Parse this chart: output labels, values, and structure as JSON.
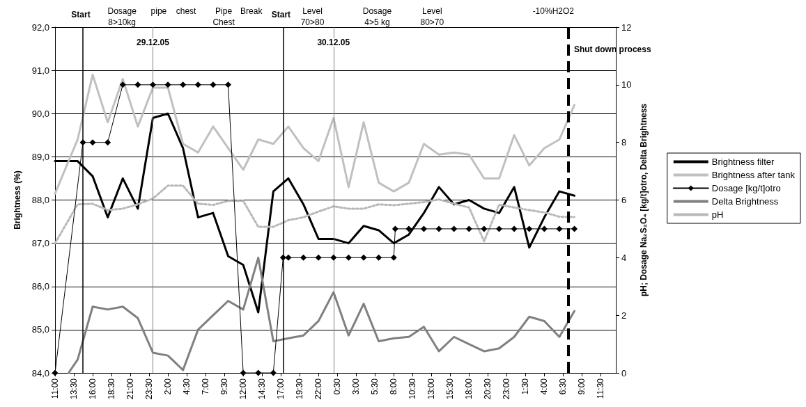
{
  "chart_data": {
    "type": "line",
    "ylabel": "Brightness (%)",
    "y2label": "pH; Dosage Na₂S₂O₄ [kg/t]otro, Delta Brightness",
    "xlim": [
      "--12-28T11:00",
      "--12-31T13:30"
    ],
    "xticks": [
      {
        "value": "--12-28T11:00",
        "label": "11:00"
      },
      {
        "value": "--12-28T13:30",
        "label": "13:30"
      },
      {
        "value": "--12-28T16:00",
        "label": "16:00"
      },
      {
        "value": "--12-28T18:30",
        "label": "18:30"
      },
      {
        "value": "--12-28T21:00",
        "label": "21:00"
      },
      {
        "value": "--12-28T23:30",
        "label": "23:30"
      },
      {
        "value": "--12-29T02:00",
        "label": "2:00"
      },
      {
        "value": "--12-29T04:30",
        "label": "4:30"
      },
      {
        "value": "--12-29T07:00",
        "label": "7:00"
      },
      {
        "value": "--12-29T09:30",
        "label": "9:30"
      },
      {
        "value": "--12-29T12:00",
        "label": "12:00"
      },
      {
        "value": "--12-29T14:30",
        "label": "14:30"
      },
      {
        "value": "--12-29T17:00",
        "label": "17:00"
      },
      {
        "value": "--12-29T19:30",
        "label": "19:30"
      },
      {
        "value": "--12-29T22:00",
        "label": "22:00"
      },
      {
        "value": "--12-30T00:30",
        "label": "0:30"
      },
      {
        "value": "--12-30T03:00",
        "label": "3:00"
      },
      {
        "value": "--12-30T05:30",
        "label": "5:30"
      },
      {
        "value": "--12-30T08:00",
        "label": "8:00"
      },
      {
        "value": "--12-30T10:30",
        "label": "10:30"
      },
      {
        "value": "--12-30T13:00",
        "label": "13:00"
      },
      {
        "value": "--12-30T15:30",
        "label": "15:30"
      },
      {
        "value": "--12-30T18:00",
        "label": "18:00"
      },
      {
        "value": "--12-30T20:30",
        "label": "20:30"
      },
      {
        "value": "--12-30T23:00",
        "label": "23:00"
      },
      {
        "value": "--12-31T01:30",
        "label": "1:30"
      },
      {
        "value": "--12-31T04:00",
        "label": "4:00"
      },
      {
        "value": "--12-31T06:30",
        "label": "6:30"
      },
      {
        "value": "--12-31T09:00",
        "label": "9:00"
      },
      {
        "value": "--12-31T11:30",
        "label": "11:30"
      }
    ],
    "ylim": [
      84,
      92
    ],
    "yticks": [
      {
        "value": 84,
        "label": "84,0"
      },
      {
        "value": 85,
        "label": "85,0"
      },
      {
        "value": 86,
        "label": "86,0"
      },
      {
        "value": 87,
        "label": "87,0"
      },
      {
        "value": 88,
        "label": "88,0"
      },
      {
        "value": 89,
        "label": "89,0"
      },
      {
        "value": 90,
        "label": "90,0"
      },
      {
        "value": 91,
        "label": "91,0"
      },
      {
        "value": 92,
        "label": "92,0"
      }
    ],
    "y2lim": [
      0,
      12
    ],
    "y2ticks": [
      0,
      2,
      4,
      6,
      8,
      10,
      12
    ],
    "grid": "y",
    "legend": "right",
    "series": [
      {
        "name": "Brightness filter",
        "color": "#000000",
        "marker": "none",
        "x": [
          "--12-28T11:00",
          "--12-28T14:00",
          "--12-28T16:00",
          "--12-28T18:00",
          "--12-28T20:00",
          "--12-28T22:00",
          "--12-29T00:00",
          "--12-29T02:00",
          "--12-29T04:00",
          "--12-29T06:00",
          "--12-29T08:00",
          "--12-29T10:00",
          "--12-29T12:00",
          "--12-29T14:00",
          "--12-29T16:00",
          "--12-29T18:00",
          "--12-29T20:00",
          "--12-29T22:00",
          "--12-30T00:00",
          "--12-30T02:00",
          "--12-30T04:00",
          "--12-30T06:00",
          "--12-30T08:00",
          "--12-30T10:00",
          "--12-30T12:00",
          "--12-30T14:00",
          "--12-30T16:00",
          "--12-30T18:00",
          "--12-30T20:00",
          "--12-30T22:00",
          "--12-31T00:00",
          "--12-31T02:00",
          "--12-31T04:00",
          "--12-31T06:00",
          "--12-31T08:00"
        ],
        "values": [
          88.9,
          88.9,
          88.55,
          87.6,
          88.5,
          87.8,
          89.9,
          90.0,
          89.2,
          87.6,
          87.7,
          86.7,
          86.5,
          85.4,
          88.2,
          88.5,
          87.9,
          87.1,
          87.1,
          87.0,
          87.4,
          87.3,
          87.0,
          87.2,
          87.7,
          88.3,
          87.9,
          88.0,
          87.8,
          87.7,
          88.3,
          86.9,
          87.6,
          88.2,
          88.1
        ]
      },
      {
        "name": "Brightness after tank",
        "color": "#c0c0c0",
        "marker": "none",
        "x": [
          "--12-28T11:00",
          "--12-28T14:00",
          "--12-28T16:00",
          "--12-28T18:00",
          "--12-28T20:00",
          "--12-28T22:00",
          "--12-29T00:00",
          "--12-29T02:00",
          "--12-29T04:00",
          "--12-29T06:00",
          "--12-29T08:00",
          "--12-29T10:00",
          "--12-29T12:00",
          "--12-29T14:00",
          "--12-29T16:00",
          "--12-29T18:00",
          "--12-29T20:00",
          "--12-29T22:00",
          "--12-30T00:00",
          "--12-30T02:00",
          "--12-30T04:00",
          "--12-30T06:00",
          "--12-30T08:00",
          "--12-30T10:00",
          "--12-30T12:00",
          "--12-30T14:00",
          "--12-30T16:00",
          "--12-30T18:00",
          "--12-30T20:00",
          "--12-30T22:00",
          "--12-31T00:00",
          "--12-31T02:00",
          "--12-31T04:00",
          "--12-31T06:00",
          "--12-31T08:00"
        ],
        "values": [
          88.15,
          89.4,
          90.9,
          89.8,
          90.8,
          89.7,
          90.6,
          90.6,
          89.3,
          89.1,
          89.7,
          89.2,
          88.7,
          89.4,
          89.3,
          89.7,
          89.2,
          88.9,
          89.9,
          88.3,
          89.8,
          88.4,
          88.2,
          88.4,
          89.3,
          89.05,
          89.1,
          89.05,
          88.5,
          88.5,
          89.5,
          88.8,
          89.2,
          89.4,
          90.2
        ]
      },
      {
        "name": "Dosage [kg/t]otro",
        "color": "#000000",
        "marker": "diamond",
        "axis": "y2",
        "x": [
          "--12-28T11:00",
          "--12-28T14:42",
          "--12-28T16:00",
          "--12-28T18:00",
          "--12-28T20:00",
          "--12-28T22:00",
          "--12-29T00:00",
          "--12-29T02:00",
          "--12-29T04:00",
          "--12-29T06:00",
          "--12-29T08:00",
          "--12-29T10:00",
          "--12-29T12:00",
          "--12-29T14:00",
          "--12-29T16:00",
          "--12-29T17:18",
          "--12-29T18:00",
          "--12-29T20:00",
          "--12-29T22:00",
          "--12-30T00:00",
          "--12-30T02:00",
          "--12-30T04:00",
          "--12-30T06:00",
          "--12-30T08:00",
          "--12-30T08:12",
          "--12-30T10:00",
          "--12-30T12:00",
          "--12-30T14:00",
          "--12-30T16:00",
          "--12-30T18:00",
          "--12-30T20:00",
          "--12-30T22:00",
          "--12-31T00:00",
          "--12-31T02:00",
          "--12-31T04:00",
          "--12-31T06:00",
          "--12-31T08:00"
        ],
        "values": [
          0,
          8,
          8,
          8,
          10,
          10,
          10,
          10,
          10,
          10,
          10,
          10,
          0,
          0,
          0,
          4,
          4,
          4,
          4,
          4,
          4,
          4,
          4,
          4,
          5,
          5,
          5,
          5,
          5,
          5,
          5,
          5,
          5,
          5,
          5,
          5,
          5
        ]
      },
      {
        "name": "Delta Brightness",
        "color": "#808080",
        "marker": "none",
        "axis": "y2",
        "x": [
          "--12-28T12:48",
          "--12-28T14:00",
          "--12-28T16:00",
          "--12-28T18:00",
          "--12-28T20:00",
          "--12-28T22:00",
          "--12-29T00:00",
          "--12-29T02:00",
          "--12-29T04:00",
          "--12-29T06:00",
          "--12-29T08:00",
          "--12-29T10:00",
          "--12-29T12:00",
          "--12-29T14:00",
          "--12-29T16:00",
          "--12-29T18:00",
          "--12-29T20:00",
          "--12-29T22:00",
          "--12-30T00:00",
          "--12-30T02:00",
          "--12-30T04:00",
          "--12-30T06:00",
          "--12-30T08:00",
          "--12-30T10:00",
          "--12-30T12:00",
          "--12-30T14:00",
          "--12-30T16:00",
          "--12-30T18:00",
          "--12-30T20:00",
          "--12-30T22:00",
          "--12-31T00:00",
          "--12-31T02:00",
          "--12-31T04:00",
          "--12-31T06:00",
          "--12-31T08:00"
        ],
        "values": [
          0,
          0.46,
          2.3,
          2.2,
          2.3,
          1.9,
          0.7,
          0.6,
          0.1,
          1.5,
          2.0,
          2.5,
          2.2,
          4.0,
          1.1,
          1.2,
          1.3,
          1.8,
          2.8,
          1.3,
          2.4,
          1.1,
          1.2,
          1.25,
          1.6,
          0.75,
          1.25,
          1.0,
          0.75,
          0.85,
          1.25,
          1.95,
          1.8,
          1.25,
          2.15
        ]
      },
      {
        "name": "pH",
        "color": "#b8b8b8",
        "marker": "none",
        "line_style": "dotted",
        "axis": "y2",
        "x": [
          "--12-28T11:00",
          "--12-28T14:00",
          "--12-28T16:00",
          "--12-28T18:00",
          "--12-28T20:00",
          "--12-28T22:00",
          "--12-29T00:00",
          "--12-29T02:00",
          "--12-29T04:00",
          "--12-29T06:00",
          "--12-29T08:00",
          "--12-29T10:00",
          "--12-29T12:00",
          "--12-29T14:00",
          "--12-29T16:00",
          "--12-29T18:00",
          "--12-29T20:00",
          "--12-29T22:00",
          "--12-30T00:00",
          "--12-30T02:00",
          "--12-30T04:00",
          "--12-30T06:00",
          "--12-30T08:00",
          "--12-30T10:00",
          "--12-30T12:00",
          "--12-30T14:00",
          "--12-30T16:00",
          "--12-30T18:00",
          "--12-30T20:00",
          "--12-30T22:00",
          "--12-31T00:00",
          "--12-31T02:00",
          "--12-31T04:00",
          "--12-31T06:00",
          "--12-31T08:00"
        ],
        "values": [
          4.5,
          5.85,
          5.87,
          5.65,
          5.7,
          5.85,
          6.05,
          6.5,
          6.5,
          5.87,
          5.83,
          5.97,
          5.97,
          5.07,
          5.07,
          5.3,
          5.4,
          5.6,
          5.78,
          5.7,
          5.7,
          5.85,
          5.82,
          5.87,
          5.93,
          6.02,
          5.87,
          5.74,
          4.57,
          5.84,
          5.74,
          5.65,
          5.57,
          5.42,
          5.41
        ]
      }
    ],
    "ref_lines": [
      {
        "axis": "x",
        "value": "--12-28T14:42",
        "label": "Start",
        "color": "#000000"
      },
      {
        "axis": "x",
        "value": "--12-29T00:00",
        "label": "29.12.05",
        "color": "#808080"
      },
      {
        "axis": "x",
        "value": "--12-29T17:18",
        "label": "Start",
        "color": "#000000"
      },
      {
        "axis": "x",
        "value": "--12-30T00:00",
        "label": "30.12.05",
        "color": "#808080"
      },
      {
        "axis": "x",
        "value": "--12-31T07:12",
        "label": "Shut down process",
        "color": "#000000",
        "line_style": "dashed"
      }
    ],
    "annotations": [
      "Dosage\n8>10kg",
      "pipe",
      "chest",
      "Pipe\nChest",
      "Break",
      "Level\n70>80",
      "Dosage\n4>5 kg",
      "Level\n80>70",
      "-10%H2O2"
    ]
  }
}
